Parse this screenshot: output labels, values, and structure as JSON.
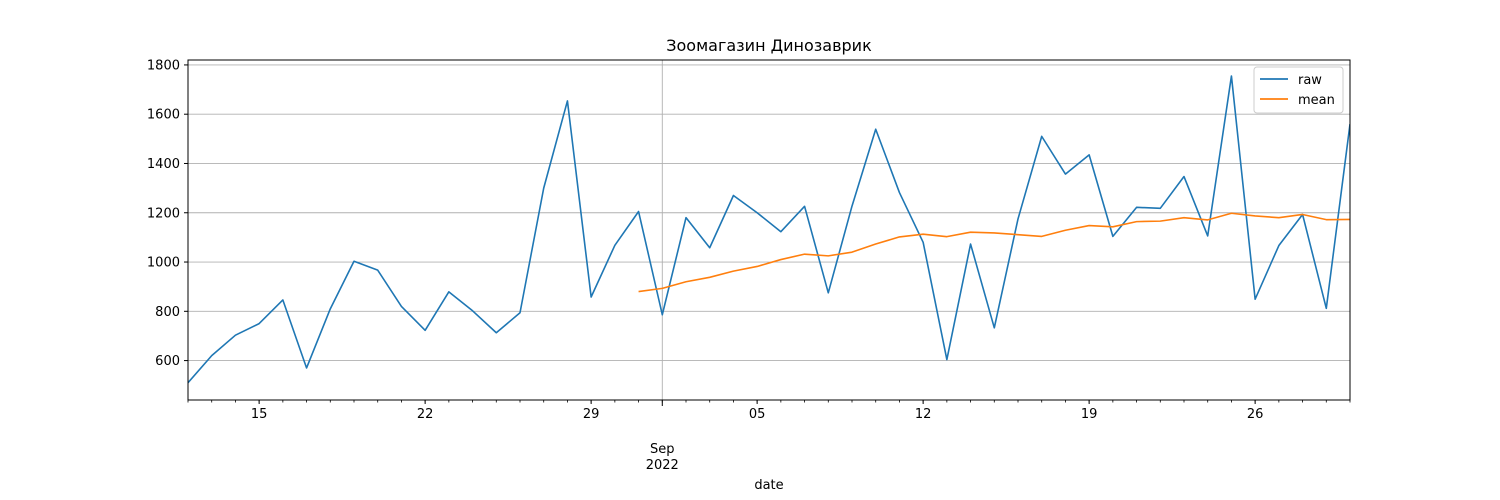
{
  "chart_data": {
    "type": "line",
    "title": "Зоомагазин Динозаврик",
    "xlabel": "date",
    "ylabel": "",
    "start_date": "2022-08-12",
    "xlim": [
      "2022-08-12",
      "2022-09-30"
    ],
    "ylim": [
      440,
      1820
    ],
    "yticks": [
      600,
      800,
      1000,
      1200,
      1400,
      1600,
      1800
    ],
    "xticks": [
      {
        "date": "2022-08-15",
        "label": "15"
      },
      {
        "date": "2022-08-22",
        "label": "22"
      },
      {
        "date": "2022-08-29",
        "label": "29"
      },
      {
        "date": "2022-09-01",
        "label": "Sep",
        "sublabel": "2022",
        "major": true
      },
      {
        "date": "2022-09-05",
        "label": "05"
      },
      {
        "date": "2022-09-12",
        "label": "12"
      },
      {
        "date": "2022-09-19",
        "label": "19"
      },
      {
        "date": "2022-09-26",
        "label": "26"
      }
    ],
    "grid": true,
    "legend": "top-right",
    "colors": {
      "raw": "#1f77b4",
      "mean": "#ff7f0e",
      "grid": "#b0b0b0"
    },
    "series": [
      {
        "name": "raw",
        "start": "2022-08-12",
        "values": [
          510,
          620,
          703,
          750,
          846,
          570,
          810,
          1003,
          967,
          820,
          723,
          879,
          802,
          713,
          794,
          1300,
          1654,
          858,
          1068,
          1205,
          786,
          1180,
          1058,
          1270,
          1200,
          1123,
          1226,
          875,
          1227,
          1539,
          1282,
          1080,
          604,
          1073,
          733,
          1175,
          1510,
          1357,
          1435,
          1104,
          1222,
          1218,
          1347,
          1106,
          1755,
          849,
          1067,
          1193,
          812,
          1560
        ]
      },
      {
        "name": "mean",
        "start": "2022-08-31",
        "values": [
          880,
          893,
          920,
          938,
          963,
          982,
          1010,
          1032,
          1025,
          1040,
          1073,
          1102,
          1113,
          1103,
          1121,
          1118,
          1111,
          1104,
          1129,
          1148,
          1143,
          1164,
          1166,
          1180,
          1171,
          1198,
          1187,
          1180,
          1193,
          1172,
          1173
        ]
      }
    ]
  }
}
